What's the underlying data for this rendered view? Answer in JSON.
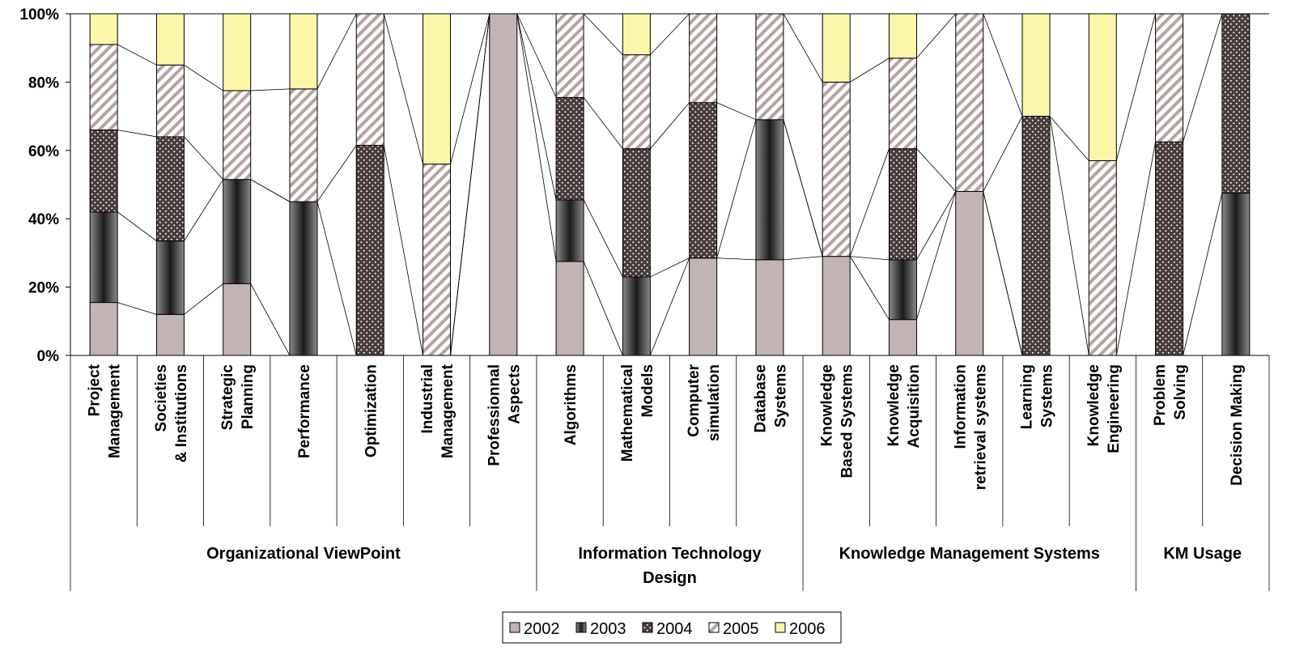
{
  "colors": {
    "2002": "#c2b4b2",
    "2003": "#333333",
    "2004": "#4a3b3b",
    "2005": "#ffffff",
    "2006": "#fbf6a9"
  },
  "chart_data": {
    "type": "bar",
    "stacked": "percent",
    "ylim": [
      0,
      100
    ],
    "yticks": [
      "0%",
      "20%",
      "40%",
      "60%",
      "80%",
      "100%"
    ],
    "categories": [
      [
        "Project",
        "Management"
      ],
      [
        "Societies",
        "& Institutions"
      ],
      [
        "Strategic",
        "Planning"
      ],
      [
        "Performance"
      ],
      [
        "Optimization"
      ],
      [
        "Industrial",
        "Management"
      ],
      [
        "Professionnal",
        "Aspects"
      ],
      [
        "Algorithms"
      ],
      [
        "Mathematical",
        "Models"
      ],
      [
        "Computer",
        "simulation"
      ],
      [
        "Database",
        "Systems"
      ],
      [
        "Knowledge",
        "Based Systems"
      ],
      [
        "Knowledge",
        "Acquisition"
      ],
      [
        "Information",
        "retrieval systems"
      ],
      [
        "Learning",
        "Systems"
      ],
      [
        "Knowledge",
        "Engineering"
      ],
      [
        "Problem",
        "Solving"
      ],
      [
        "Decision Making"
      ]
    ],
    "groups": [
      {
        "label": [
          "Organizational ViewPoint"
        ],
        "start": 0,
        "end": 6
      },
      {
        "label": [
          "Information Technology",
          "Design"
        ],
        "start": 7,
        "end": 10
      },
      {
        "label": [
          "Knowledge Management Systems"
        ],
        "start": 11,
        "end": 15
      },
      {
        "label": [
          "KM Usage"
        ],
        "start": 16,
        "end": 17
      }
    ],
    "series": [
      {
        "name": "2002",
        "values": [
          15.5,
          12,
          21,
          0,
          0,
          0,
          100,
          27.5,
          0,
          28.5,
          28,
          29,
          10.5,
          48,
          0,
          0,
          0,
          0
        ]
      },
      {
        "name": "2003",
        "values": [
          26.5,
          21.5,
          30.5,
          45,
          0,
          0,
          0,
          18,
          23,
          0,
          41,
          0,
          17.5,
          0,
          0,
          0,
          0,
          47.5
        ]
      },
      {
        "name": "2004",
        "values": [
          24,
          30.5,
          0,
          0,
          61.5,
          0,
          0,
          30,
          37.5,
          45.5,
          0,
          0,
          32.5,
          0,
          70,
          0,
          62.5,
          52.5
        ]
      },
      {
        "name": "2005",
        "values": [
          25,
          21,
          26,
          33,
          38.5,
          56,
          0,
          24.5,
          27.5,
          26,
          31,
          51,
          26.5,
          52,
          0,
          57,
          37.5,
          0
        ]
      },
      {
        "name": "2006",
        "values": [
          9,
          15,
          22.5,
          22,
          0,
          44,
          0,
          0,
          12,
          0,
          0,
          20,
          13,
          0,
          30,
          43,
          0,
          0
        ]
      }
    ],
    "legend": {
      "position": "bottom",
      "entries": [
        "2002",
        "2003",
        "2004",
        "2005",
        "2006"
      ]
    }
  }
}
